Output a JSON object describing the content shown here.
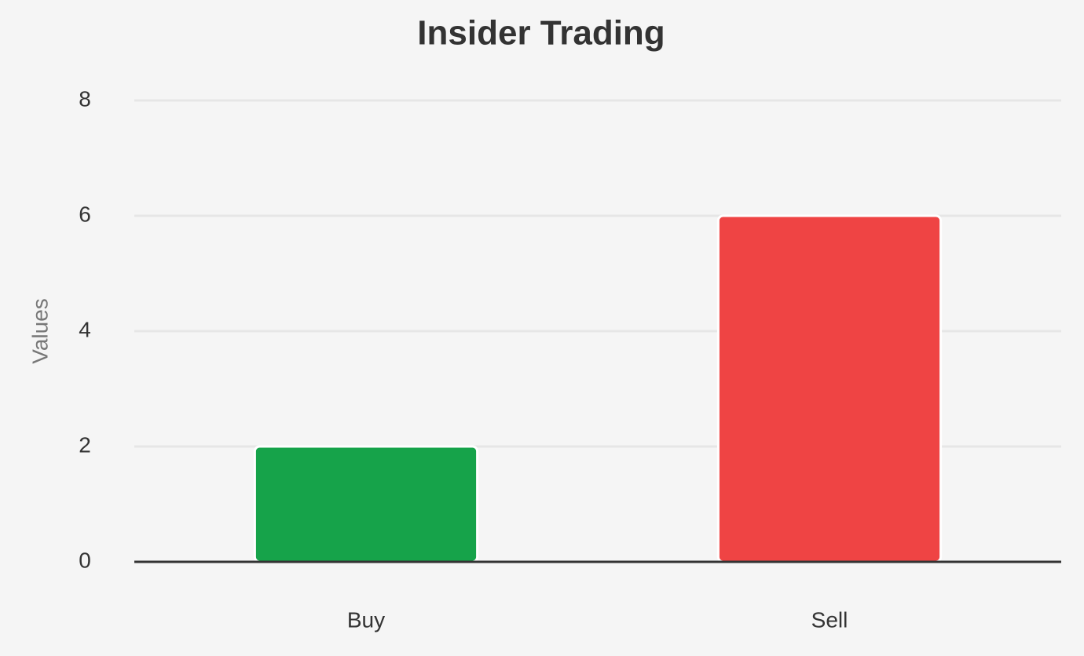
{
  "chart_data": {
    "type": "bar",
    "title": "Insider Trading",
    "y_label": "Values",
    "categories": [
      "Buy",
      "Sell"
    ],
    "values": [
      2,
      6
    ],
    "colors": [
      "#16a34a",
      "#ef4444"
    ],
    "ylim": [
      0,
      8
    ],
    "yticks": [
      0,
      2,
      4,
      6,
      8
    ],
    "grid": true
  }
}
